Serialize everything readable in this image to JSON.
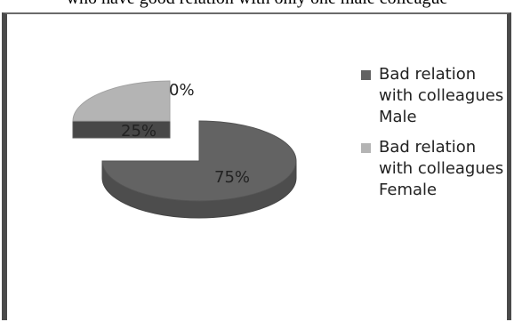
{
  "caption": "who have good relation with only one male colleague",
  "chart_data": {
    "type": "pie",
    "style": "3d-exploded",
    "series": [
      {
        "name": "Bad relation with colleagues Male",
        "value": 75,
        "label": "75%",
        "color": "#636363"
      },
      {
        "name": "Bad relation with colleagues Female",
        "value": 25,
        "label": "25%",
        "color": "#b4b4b4"
      }
    ],
    "extra_labels": [
      "0%"
    ],
    "legend_placement": "right"
  }
}
